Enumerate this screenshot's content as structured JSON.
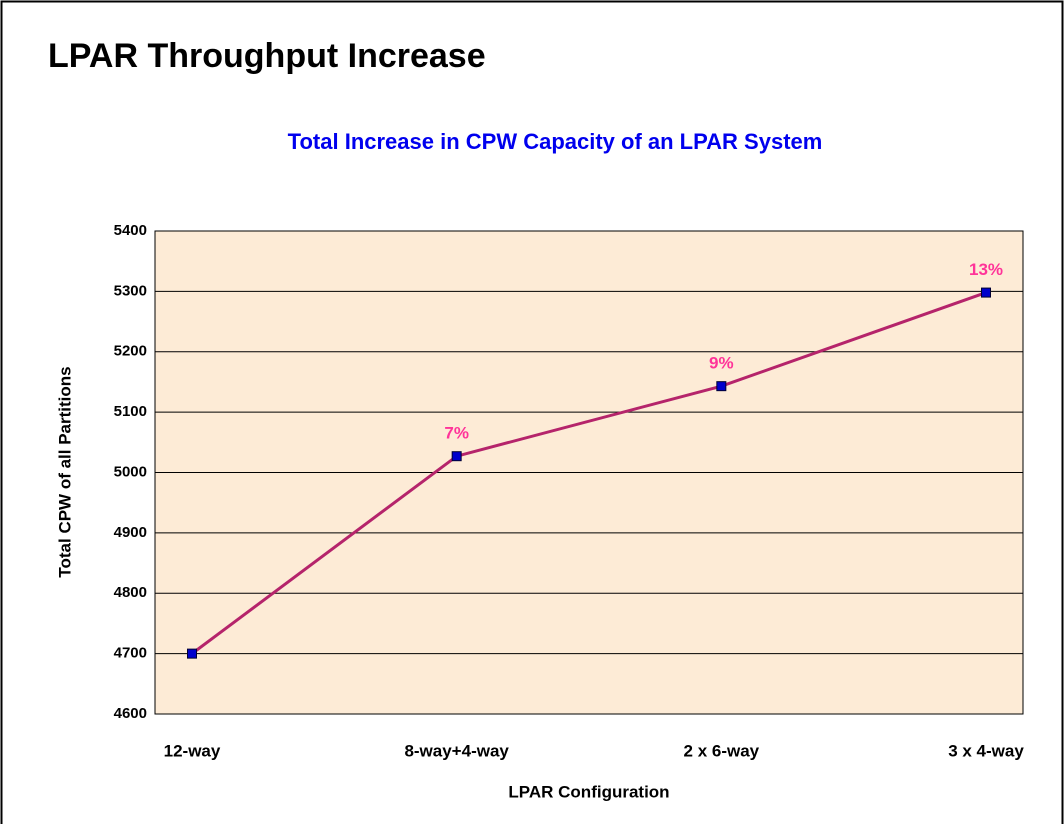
{
  "page_title": "LPAR Throughput Increase",
  "chart_data": {
    "type": "line",
    "title": "Total Increase in CPW Capacity of an LPAR System",
    "x_label": "LPAR Configuration",
    "y_label": "Total CPW of all Partitions",
    "categories": [
      "12-way",
      "8-way+4-way",
      "2 x 6-way",
      "3 x 4-way"
    ],
    "values": [
      4700,
      5027,
      5143,
      5298
    ],
    "point_labels": [
      null,
      "7%",
      "9%",
      "13%"
    ],
    "color": "#b5246b",
    "marker_color": "#0000cc",
    "label_color": "#ff3399",
    "ylim": [
      4600,
      5400
    ],
    "yticks": [
      4600,
      4700,
      4800,
      4900,
      5000,
      5100,
      5200,
      5300,
      5400
    ],
    "grid": true
  }
}
